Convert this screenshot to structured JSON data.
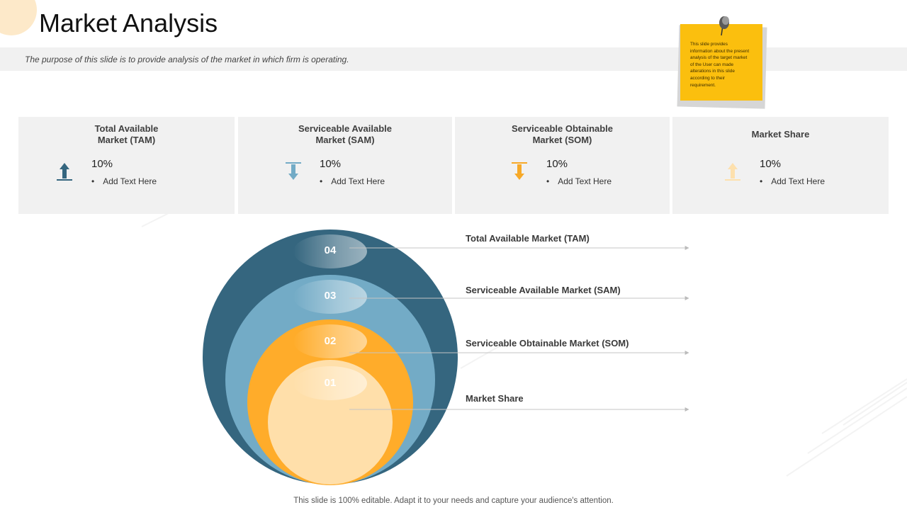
{
  "slide": {
    "title": "Market Analysis",
    "subtitle": "The purpose of this slide is to provide analysis of the market in which firm is operating.",
    "footer": "This slide is 100% editable. Adapt it to your needs and capture your audience's attention."
  },
  "sticky_note": {
    "text": "This slide provides information about the present analysis of the target market of the User can made alterations in this slide according to their requirement.",
    "color": "#fbbf0e"
  },
  "cards": [
    {
      "title": "Total Available\nMarket (TAM)",
      "value": "10%",
      "bullet": "Add Text Here",
      "icon": "arrow-up-icon",
      "color": "#35667f"
    },
    {
      "title": "Serviceable Available\nMarket (SAM)",
      "value": "10%",
      "bullet": "Add Text Here",
      "icon": "arrow-down-icon",
      "color": "#73abc6"
    },
    {
      "title": "Serviceable Obtainable\nMarket (SOM)",
      "value": "10%",
      "bullet": "Add Text Here",
      "icon": "arrow-down-icon",
      "color": "#f7a928"
    },
    {
      "title": "Market Share",
      "value": "10%",
      "bullet": "Add Text Here",
      "icon": "arrow-up-icon",
      "color": "#fde0ad"
    }
  ],
  "diagram": {
    "levels": [
      {
        "number": "04",
        "label": "Total Available Market (TAM)",
        "color": "#35667f"
      },
      {
        "number": "03",
        "label": "Serviceable Available Market (SAM)",
        "color": "#73abc6"
      },
      {
        "number": "02",
        "label": "Serviceable Obtainable Market (SOM)",
        "color": "#ffac2a"
      },
      {
        "number": "01",
        "label": "Market Share",
        "color": "#ffdfaa"
      }
    ]
  }
}
